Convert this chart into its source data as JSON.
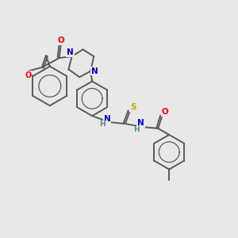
{
  "background_color": "#e8e8e8",
  "bond_color": "#5a5a5a",
  "atom_colors": {
    "O": "#ff0000",
    "N": "#0000cc",
    "S": "#ccaa00",
    "H": "#4a8a8a",
    "C": "#5a5a5a"
  },
  "figsize": [
    3.0,
    3.0
  ],
  "dpi": 100
}
